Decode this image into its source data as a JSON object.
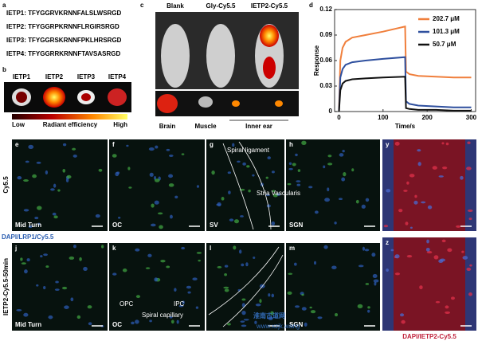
{
  "panel_a": {
    "label": "a",
    "peptides": [
      "IETP1: TFYGGRVKRNNFALSLWSRGD",
      "IETP2: TFYGGRPKRNNFLRGIRSRGD",
      "IETP3: TFYGGRSKRNNFPKLHRSRGD",
      "IETP4: TFYGGRRKRNNFTAVSASRGD"
    ]
  },
  "panel_b": {
    "label": "b",
    "names": [
      "IETP1",
      "IETP2",
      "IETP3",
      "IETP4"
    ],
    "scale_low": "Low",
    "scale_title": "Radiant efficiency",
    "scale_high": "High"
  },
  "panel_c": {
    "label": "c",
    "groups": [
      "Blank",
      "Gly-Cy5.5",
      "IETP2-Cy5.5"
    ],
    "tissues": [
      "Brain",
      "Muscle",
      "Inner ear"
    ]
  },
  "chart_data": {
    "type": "line",
    "panel_label": "d",
    "x_label": "Time/s",
    "y_label": "Response",
    "x": [
      0,
      3,
      8,
      15,
      30,
      60,
      100,
      150,
      152,
      160,
      180,
      220,
      260,
      300
    ],
    "series": [
      {
        "name": "202.7 μM",
        "color": "#f07f3c",
        "values": [
          0,
          0.06,
          0.075,
          0.082,
          0.087,
          0.09,
          0.094,
          0.1,
          0.047,
          0.044,
          0.042,
          0.041,
          0.04,
          0.04
        ]
      },
      {
        "name": "101.3 μM",
        "color": "#2e4f9e",
        "values": [
          0,
          0.04,
          0.05,
          0.055,
          0.058,
          0.06,
          0.062,
          0.064,
          0.012,
          0.009,
          0.007,
          0.006,
          0.005,
          0.005
        ]
      },
      {
        "name": "50.7 μM",
        "color": "#111111",
        "values": [
          0,
          0.025,
          0.033,
          0.036,
          0.038,
          0.039,
          0.04,
          0.041,
          0.004,
          0.003,
          0.002,
          0.002,
          0.001,
          0.001
        ]
      }
    ],
    "xlim": [
      -10,
      310
    ],
    "ylim": [
      0,
      0.12
    ],
    "xticks": [
      0,
      100,
      200,
      300
    ],
    "yticks": [
      0,
      0.03,
      0.06,
      0.09,
      0.12
    ],
    "legend": "upper right"
  },
  "micrographs": {
    "row_labels": [
      "Cy5.5",
      "IETP2-Cy5.5-50min"
    ],
    "stain_rows": "DAPI/LRP1/Cy5.5",
    "stain_right": "DAPI/IETP2-Cy5.5",
    "panels": [
      {
        "label": "e",
        "caption": "Mid Turn"
      },
      {
        "label": "f",
        "caption": "OC"
      },
      {
        "label": "g",
        "caption": "SV"
      },
      {
        "label": "h",
        "caption": "SGN"
      },
      {
        "label": "y"
      },
      {
        "label": "j",
        "caption": "Mid Turn"
      },
      {
        "label": "k",
        "caption": "OC"
      },
      {
        "label": "l"
      },
      {
        "label": "m",
        "caption": "SGN"
      },
      {
        "label": "z"
      }
    ],
    "annotations": [
      "Spiral ligament",
      "Stria Vascularis",
      "OPC",
      "IPC",
      "Spiral capillary"
    ]
  },
  "watermark": [
    "淮南古道网",
    "www.xzjk.wang"
  ]
}
